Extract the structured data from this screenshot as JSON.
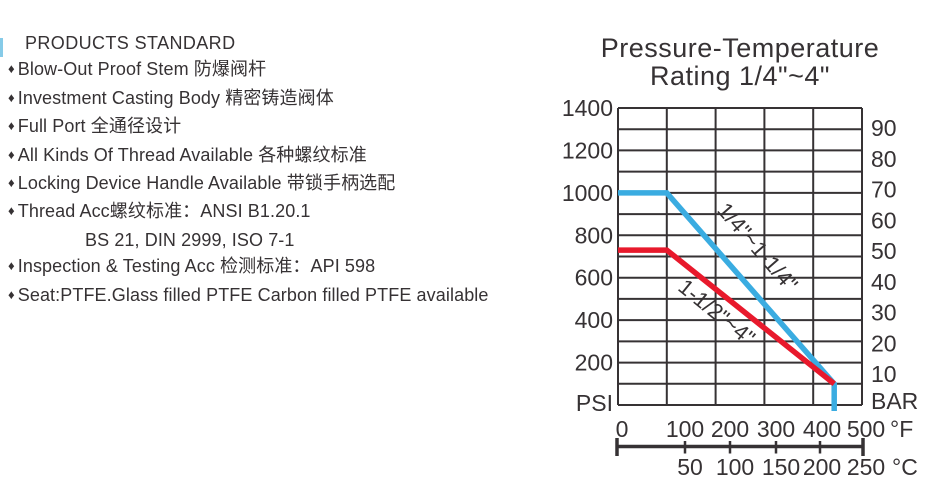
{
  "page": {
    "background": "#ffffff",
    "ink_color": "#363234",
    "left_edge_decoration_color": "#86CBE8"
  },
  "left_panel": {
    "title": "PRODUCTS STANDARD",
    "bullet_char": "♦",
    "features": [
      {
        "bullet": true,
        "indent": false,
        "text": "Blow-Out Proof Stem 防爆阀杆"
      },
      {
        "bullet": true,
        "indent": false,
        "text": "Investment Casting Body 精密铸造阀体"
      },
      {
        "bullet": true,
        "indent": false,
        "text": "Full Port 全通径设计"
      },
      {
        "bullet": true,
        "indent": false,
        "text": "All Kinds Of Thread Available 各种螺纹标准"
      },
      {
        "bullet": true,
        "indent": false,
        "text": "Locking Device Handle Available 带锁手柄选配"
      },
      {
        "bullet": true,
        "indent": false,
        "text": "Thread Acc螺纹标准：ANSI B1.20.1"
      },
      {
        "bullet": false,
        "indent": true,
        "text": "BS 21, DIN 2999, ISO 7-1"
      },
      {
        "bullet": true,
        "indent": false,
        "text": "Inspection & Testing Acc 检测标准：API 598"
      },
      {
        "bullet": true,
        "indent": false,
        "text": "Seat:PTFE.Glass filled PTFE Carbon filled PTFE available"
      }
    ]
  },
  "chart": {
    "title_line1": "Pressure-Temperature",
    "title_line2": "Rating 1/4\"~4\""
  },
  "chart_data": {
    "type": "line",
    "title": "Pressure-Temperature Rating 1/4\"~4\"",
    "grid": true,
    "x_axis": {
      "unit": "°F",
      "range": [
        0,
        500
      ],
      "ticks": [
        0,
        100,
        200,
        300,
        400,
        500
      ]
    },
    "x_axis_secondary": {
      "unit": "°C",
      "ticks": [
        50,
        100,
        150,
        200,
        250
      ]
    },
    "y_axis_left": {
      "unit": "PSI",
      "range": [
        0,
        1400
      ],
      "grid_step": 100,
      "tick_labels": [
        1400,
        1200,
        1000,
        800,
        600,
        400,
        200
      ]
    },
    "y_axis_right": {
      "unit": "BAR",
      "tick_labels": [
        90,
        80,
        70,
        60,
        50,
        40,
        30,
        20,
        10
      ],
      "psi_per_bar": 14.5
    },
    "series": [
      {
        "name": "1/4\"~1-1/4\"",
        "color": "#3AACE1",
        "points": [
          [
            0,
            1000
          ],
          [
            100,
            1000
          ],
          [
            443,
            100
          ],
          [
            443,
            0
          ]
        ]
      },
      {
        "name": "1-1/2\"~4\"",
        "color": "#E8192C",
        "points": [
          [
            0,
            730
          ],
          [
            100,
            730
          ],
          [
            443,
            100
          ]
        ]
      }
    ]
  }
}
